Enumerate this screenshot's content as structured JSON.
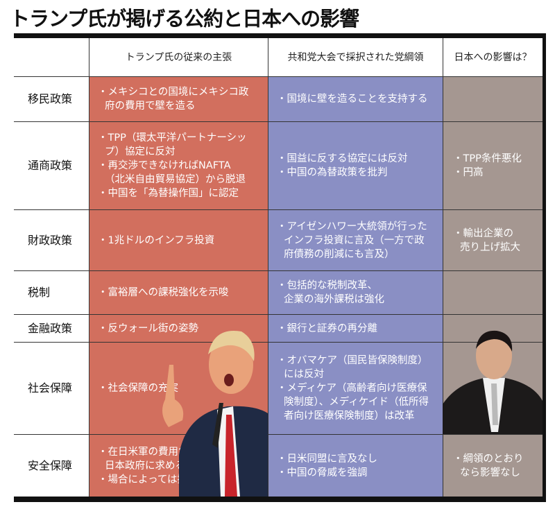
{
  "title": "トランプ氏が掲げる公約と日本への影響",
  "colors": {
    "trump_column": "#d26f5e",
    "platform_column": "#8a8fc4",
    "japan_column": "#a59791"
  },
  "headers": [
    "",
    "トランプ氏の従来の主張",
    "共和党大会で採択された党綱領",
    "日本への影響は？"
  ],
  "rows": [
    {
      "label": "移民政策",
      "trump": [
        "・メキシコとの国境にメキシコ政",
        "府の費用で壁を造る"
      ],
      "platform": [
        "・国境に壁を造ることを支持する"
      ],
      "japan": []
    },
    {
      "label": "通商政策",
      "trump": [
        "・TPP（環太平洋パートナーシッ",
        "プ）協定に反対",
        "・再交渉できなければNAFTA",
        "（北米自由貿易協定）から脱退",
        "・中国を「為替操作国」に認定"
      ],
      "platform": [
        "・国益に反する協定には反対",
        "・中国の為替政策を批判"
      ],
      "japan": [
        "・TPP条件悪化",
        "・円高"
      ]
    },
    {
      "label": "財政政策",
      "trump": [
        "・1兆ドルのインフラ投資"
      ],
      "platform": [
        "・アイゼンハワー大統領が行った",
        "インフラ投資に言及（一方で政",
        "府債務の削減にも言及）"
      ],
      "japan": [
        "・輸出企業の",
        "売り上げ拡大"
      ]
    },
    {
      "label": "税制",
      "trump": [
        "・富裕層への課税強化を示唆"
      ],
      "platform": [
        "・包括的な税制改革、",
        "企業の海外課税は強化"
      ],
      "japan": []
    },
    {
      "label": "金融政策",
      "trump": [
        "・反ウォール街の姿勢"
      ],
      "platform": [
        "・銀行と証券の再分離"
      ],
      "japan": []
    },
    {
      "label": "社会保障",
      "trump": [
        "・社会保障の充実"
      ],
      "platform": [
        "・オバマケア（国民皆保険制度）",
        "には反対",
        "・メディケア（高齢者向け医療保",
        "険制度）、メディケイド（低所得",
        "者向け医療保険制度）は改革"
      ],
      "japan": []
    },
    {
      "label": "安全保障",
      "trump": [
        "・在日米軍の費用負担を",
        "日本政府に求める",
        "・場合によっては撤退も"
      ],
      "platform": [
        "・日米同盟に言及なし",
        "・中国の脅威を強調"
      ],
      "japan": [
        "・綱領のとおり",
        "なら影響なし"
      ]
    }
  ]
}
